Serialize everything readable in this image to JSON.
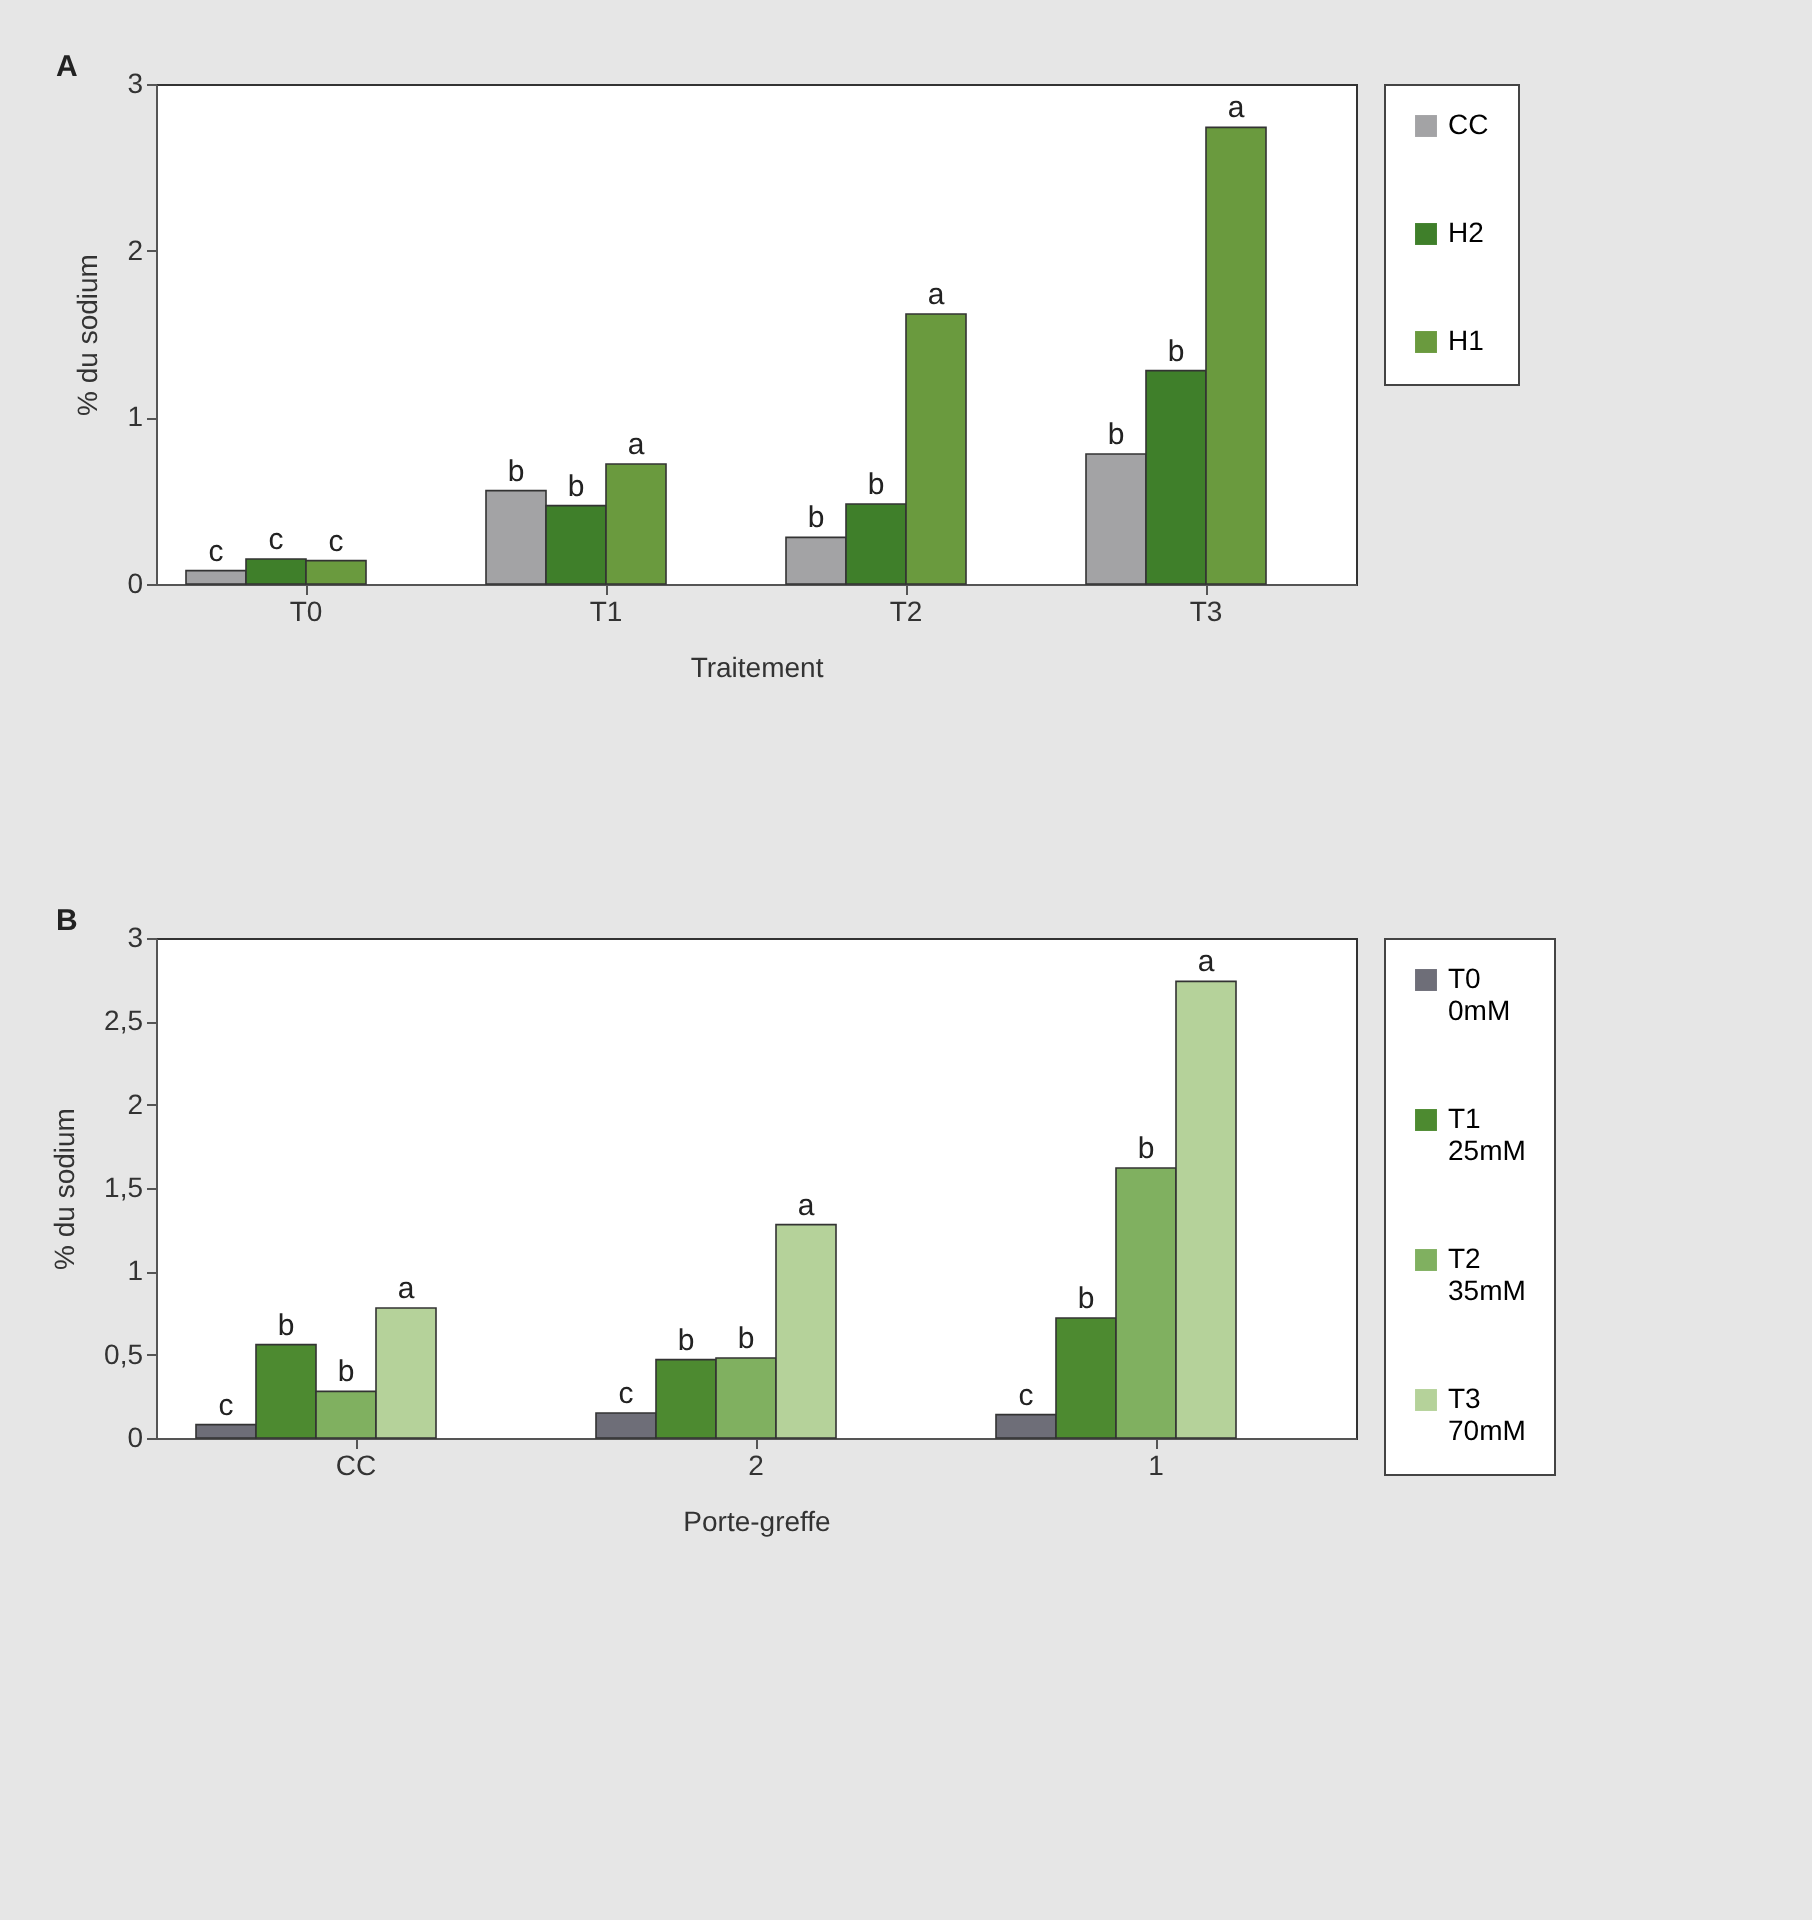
{
  "chart_data": [
    {
      "type": "bar",
      "title": "A",
      "xlabel": "Traitement",
      "ylabel": "% du sodium",
      "categories": [
        "T0",
        "T1",
        "T2",
        "T3"
      ],
      "ylim": [
        0,
        3
      ],
      "yticks": [
        0,
        1,
        2,
        3
      ],
      "grid": false,
      "legend": "right",
      "series": [
        {
          "name": "CC",
          "color": "#a3a3a5",
          "values": [
            0.08,
            0.56,
            0.28,
            0.78
          ],
          "value_labels": [
            "c",
            "b",
            "b",
            "b"
          ]
        },
        {
          "name": "H2",
          "color": "#3f7f2a",
          "values": [
            0.15,
            0.47,
            0.48,
            1.28
          ],
          "value_labels": [
            "c",
            "b",
            "b",
            "b"
          ]
        },
        {
          "name": "H1",
          "color": "#6a9a3e",
          "values": [
            0.14,
            0.72,
            1.62,
            2.74
          ],
          "value_labels": [
            "c",
            "a",
            "a",
            "a"
          ]
        }
      ]
    },
    {
      "type": "bar",
      "title": "B",
      "xlabel": "Porte-greffe",
      "ylabel": "% du sodium",
      "categories": [
        "CC",
        "2",
        "1"
      ],
      "ylim": [
        0,
        3
      ],
      "yticks": [
        0,
        {
          "value": 0.5,
          "label": "0,5"
        },
        1,
        {
          "value": 1.5,
          "label": "1,5"
        },
        2,
        {
          "value": 2.5,
          "label": "2,5"
        },
        3
      ],
      "grid": false,
      "legend": "right",
      "series": [
        {
          "name": "T0 0mM",
          "color": "#6e6e78",
          "values": [
            0.08,
            0.15,
            0.14
          ],
          "value_labels": [
            "c",
            "c",
            "c"
          ]
        },
        {
          "name": "T1 25mM",
          "color": "#4d8a30",
          "values": [
            0.56,
            0.47,
            0.72
          ],
          "value_labels": [
            "b",
            "b",
            "b"
          ]
        },
        {
          "name": "T2 35mM",
          "color": "#80b060",
          "values": [
            0.28,
            0.48,
            1.62
          ],
          "value_labels": [
            "b",
            "b",
            "b"
          ]
        },
        {
          "name": "T3 70mM",
          "color": "#b5d29a",
          "values": [
            0.78,
            1.28,
            2.74
          ],
          "value_labels": [
            "a",
            "a",
            "a"
          ]
        }
      ]
    }
  ]
}
